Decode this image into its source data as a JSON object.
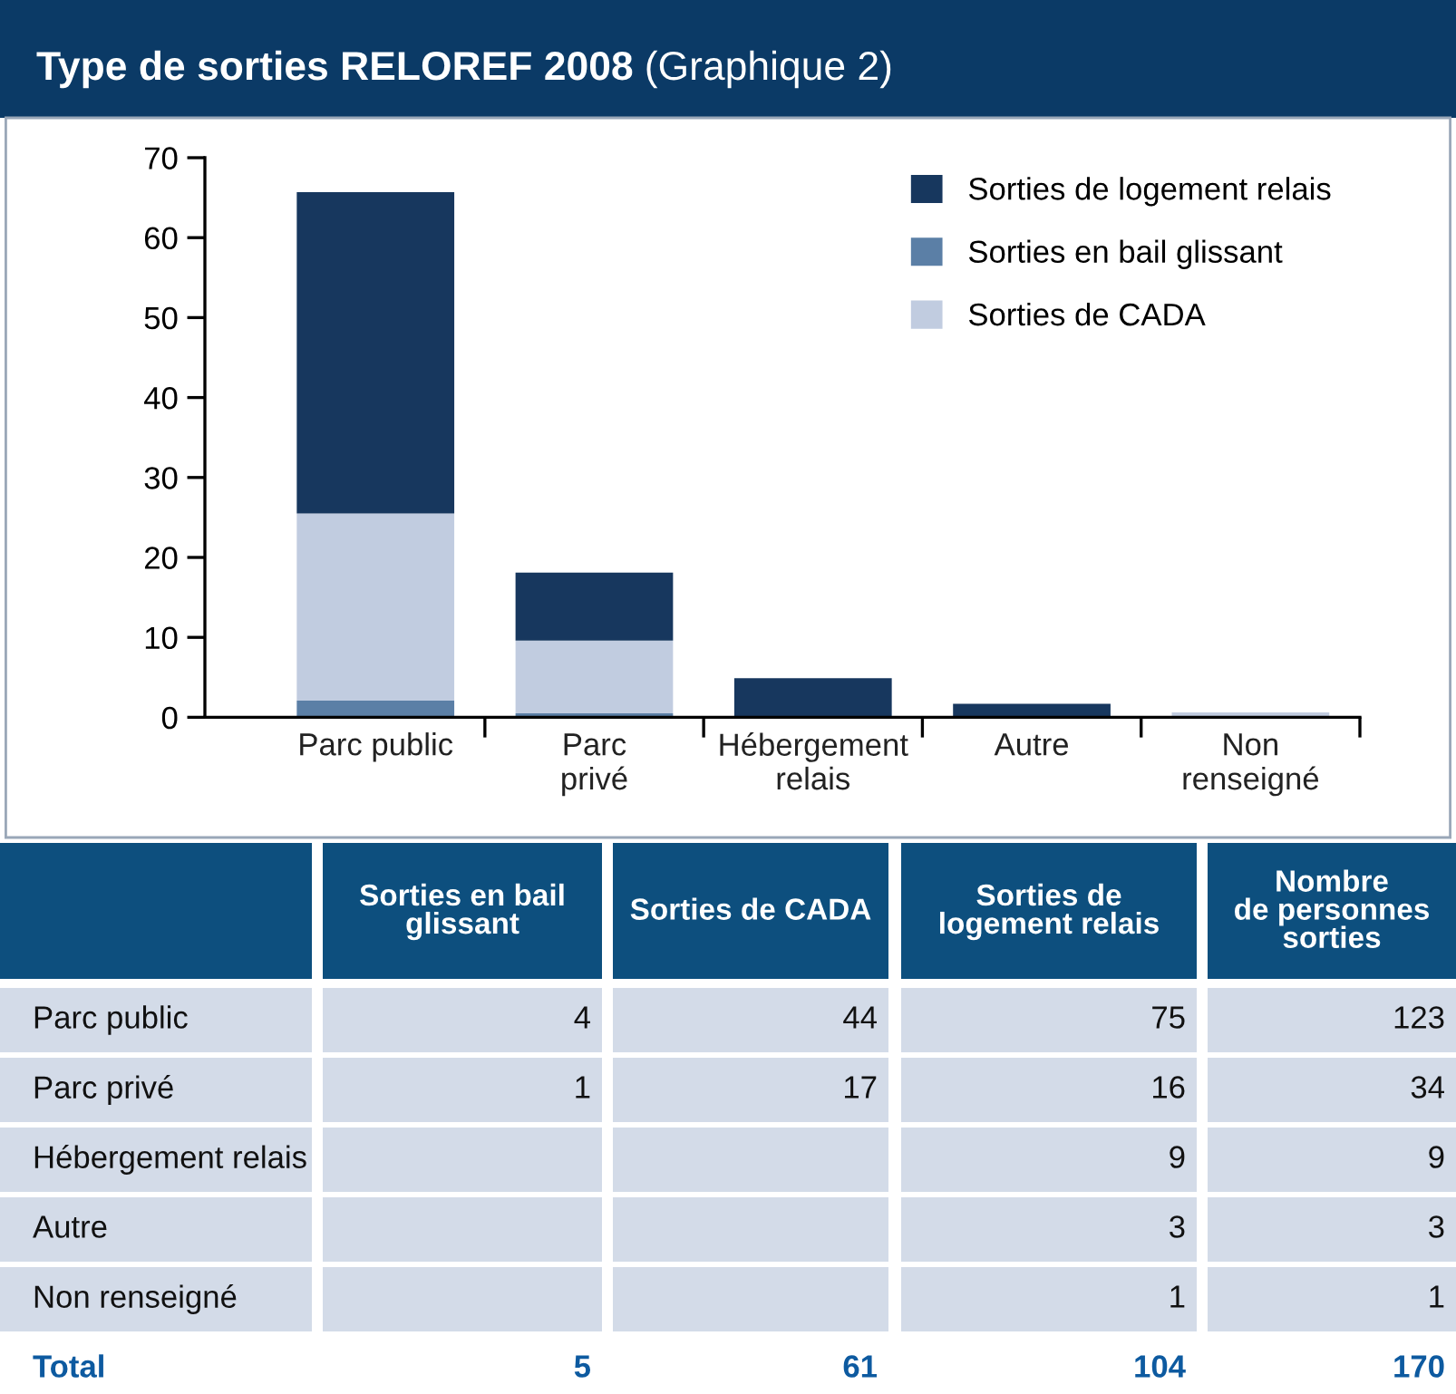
{
  "chart_data": [
    {
      "type": "bar",
      "title": "Type de sorties RELOREF 2008",
      "subtitle": "(Graphique 2)",
      "stacked": true,
      "categories": [
        "Parc public",
        "Parc\nprivé",
        "Hébergement\nrelais",
        "Autre",
        "Non\nrenseigné"
      ],
      "series": [
        {
          "name": "Sorties en bail glissant",
          "color": "#5b7fa6",
          "values": [
            2.1,
            0.5,
            null,
            null,
            null
          ]
        },
        {
          "name": "Sorties de CADA",
          "color": "#c1cce0",
          "values": [
            23.4,
            9.1,
            null,
            null,
            0.6
          ]
        },
        {
          "name": "Sorties de logement relais",
          "color": "#17375e",
          "values": [
            40.2,
            8.5,
            4.9,
            1.7,
            null
          ]
        }
      ],
      "ylim": [
        0,
        70
      ],
      "yticks": [
        0,
        10,
        20,
        30,
        40,
        50,
        60,
        70
      ],
      "grid": false,
      "legend": "top right"
    },
    {
      "type": "other",
      "data_labels": true,
      "categories": [
        "Parc public",
        "Parc privé",
        "Hébergement relais",
        "Autre",
        "Non renseigné",
        "Total"
      ],
      "series": [
        {
          "name": "Sorties en bail\nglissant",
          "values": [
            4,
            1,
            null,
            null,
            null,
            5
          ]
        },
        {
          "name": "Sorties de CADA",
          "values": [
            44,
            17,
            null,
            null,
            null,
            61
          ]
        },
        {
          "name": "Sorties de\nlogement relais",
          "values": [
            75,
            16,
            9,
            3,
            1,
            104
          ]
        },
        {
          "name": "Nombre\nde personnes\nsorties",
          "values": [
            123,
            34,
            9,
            3,
            1,
            170
          ]
        }
      ]
    }
  ]
}
